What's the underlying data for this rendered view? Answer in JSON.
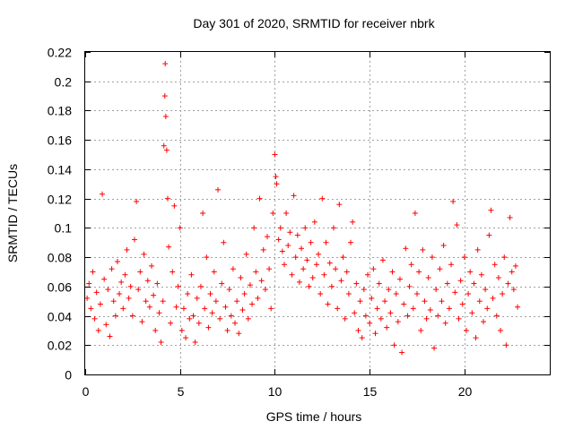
{
  "chart_data": {
    "type": "scatter",
    "title": "Day 301 of 2020, SRMTID for receiver nbrk",
    "xlabel": "GPS time / hours",
    "ylabel": "SRMTID / TECUs",
    "xlim": [
      0,
      24.5
    ],
    "ylim": [
      0,
      0.22
    ],
    "x_ticks": [
      0,
      5,
      10,
      15,
      20
    ],
    "y_ticks": [
      0,
      0.02,
      0.04,
      0.06,
      0.08,
      0.1,
      0.12,
      0.14,
      0.16,
      0.18,
      0.2,
      0.22
    ],
    "x_tick_labels": [
      "0",
      "5",
      "10",
      "15",
      "20"
    ],
    "y_tick_labels": [
      "0",
      "0.02",
      "0.04",
      "0.06",
      "0.08",
      "0.1",
      "0.12",
      "0.14",
      "0.16",
      "0.18",
      "0.2",
      "0.22"
    ],
    "grid": true,
    "marker": "+",
    "color": "#ff0000",
    "series": [
      {
        "name": "SRMTID",
        "points": [
          [
            0.1,
            0.052
          ],
          [
            0.2,
            0.062
          ],
          [
            0.3,
            0.045
          ],
          [
            0.4,
            0.07
          ],
          [
            0.5,
            0.038
          ],
          [
            0.6,
            0.056
          ],
          [
            0.7,
            0.03
          ],
          [
            0.8,
            0.048
          ],
          [
            0.9,
            0.123
          ],
          [
            1.0,
            0.065
          ],
          [
            1.1,
            0.034
          ],
          [
            1.2,
            0.058
          ],
          [
            1.3,
            0.026
          ],
          [
            1.4,
            0.072
          ],
          [
            1.5,
            0.05
          ],
          [
            1.6,
            0.04
          ],
          [
            1.7,
            0.077
          ],
          [
            1.8,
            0.055
          ],
          [
            1.9,
            0.063
          ],
          [
            2.0,
            0.045
          ],
          [
            2.1,
            0.068
          ],
          [
            2.2,
            0.085
          ],
          [
            2.3,
            0.052
          ],
          [
            2.4,
            0.06
          ],
          [
            2.5,
            0.04
          ],
          [
            2.6,
            0.092
          ],
          [
            2.7,
            0.118
          ],
          [
            2.8,
            0.058
          ],
          [
            2.9,
            0.07
          ],
          [
            3.0,
            0.036
          ],
          [
            3.1,
            0.082
          ],
          [
            3.2,
            0.05
          ],
          [
            3.3,
            0.064
          ],
          [
            3.4,
            0.046
          ],
          [
            3.5,
            0.074
          ],
          [
            3.6,
            0.054
          ],
          [
            3.7,
            0.03
          ],
          [
            3.8,
            0.062
          ],
          [
            3.9,
            0.042
          ],
          [
            4.0,
            0.022
          ],
          [
            4.1,
            0.05
          ],
          [
            4.15,
            0.156
          ],
          [
            4.2,
            0.19
          ],
          [
            4.22,
            0.212
          ],
          [
            4.25,
            0.176
          ],
          [
            4.3,
            0.153
          ],
          [
            4.35,
            0.12
          ],
          [
            4.4,
            0.087
          ],
          [
            4.5,
            0.035
          ],
          [
            4.6,
            0.07
          ],
          [
            4.7,
            0.115
          ],
          [
            4.8,
            0.046
          ],
          [
            4.9,
            0.06
          ],
          [
            5.0,
            0.1
          ],
          [
            5.1,
            0.03
          ],
          [
            5.2,
            0.045
          ],
          [
            5.3,
            0.025
          ],
          [
            5.4,
            0.055
          ],
          [
            5.5,
            0.038
          ],
          [
            5.6,
            0.068
          ],
          [
            5.7,
            0.04
          ],
          [
            5.8,
            0.022
          ],
          [
            5.9,
            0.052
          ],
          [
            6.0,
            0.035
          ],
          [
            6.1,
            0.06
          ],
          [
            6.2,
            0.11
          ],
          [
            6.3,
            0.045
          ],
          [
            6.4,
            0.08
          ],
          [
            6.5,
            0.032
          ],
          [
            6.6,
            0.055
          ],
          [
            6.7,
            0.042
          ],
          [
            6.8,
            0.07
          ],
          [
            6.9,
            0.05
          ],
          [
            7.0,
            0.126
          ],
          [
            7.1,
            0.038
          ],
          [
            7.2,
            0.062
          ],
          [
            7.3,
            0.09
          ],
          [
            7.4,
            0.046
          ],
          [
            7.5,
            0.03
          ],
          [
            7.6,
            0.058
          ],
          [
            7.7,
            0.04
          ],
          [
            7.8,
            0.072
          ],
          [
            7.9,
            0.035
          ],
          [
            8.0,
            0.05
          ],
          [
            8.1,
            0.028
          ],
          [
            8.2,
            0.066
          ],
          [
            8.3,
            0.044
          ],
          [
            8.4,
            0.055
          ],
          [
            8.5,
            0.082
          ],
          [
            8.6,
            0.038
          ],
          [
            8.7,
            0.061
          ],
          [
            8.8,
            0.048
          ],
          [
            8.9,
            0.1
          ],
          [
            9.0,
            0.07
          ],
          [
            9.1,
            0.052
          ],
          [
            9.2,
            0.12
          ],
          [
            9.3,
            0.064
          ],
          [
            9.4,
            0.085
          ],
          [
            9.5,
            0.058
          ],
          [
            9.6,
            0.094
          ],
          [
            9.7,
            0.072
          ],
          [
            9.8,
            0.045
          ],
          [
            9.9,
            0.11
          ],
          [
            10.0,
            0.15
          ],
          [
            10.05,
            0.135
          ],
          [
            10.1,
            0.13
          ],
          [
            10.2,
            0.092
          ],
          [
            10.3,
            0.1
          ],
          [
            10.4,
            0.084
          ],
          [
            10.5,
            0.075
          ],
          [
            10.6,
            0.11
          ],
          [
            10.7,
            0.088
          ],
          [
            10.8,
            0.097
          ],
          [
            10.9,
            0.068
          ],
          [
            11.0,
            0.122
          ],
          [
            11.1,
            0.08
          ],
          [
            11.2,
            0.095
          ],
          [
            11.3,
            0.063
          ],
          [
            11.4,
            0.086
          ],
          [
            11.5,
            0.072
          ],
          [
            11.6,
            0.1
          ],
          [
            11.7,
            0.078
          ],
          [
            11.8,
            0.06
          ],
          [
            11.9,
            0.09
          ],
          [
            12.0,
            0.066
          ],
          [
            12.1,
            0.104
          ],
          [
            12.2,
            0.075
          ],
          [
            12.3,
            0.082
          ],
          [
            12.4,
            0.055
          ],
          [
            12.5,
            0.12
          ],
          [
            12.6,
            0.068
          ],
          [
            12.7,
            0.09
          ],
          [
            12.8,
            0.048
          ],
          [
            12.9,
            0.076
          ],
          [
            13.0,
            0.06
          ],
          [
            13.1,
            0.1
          ],
          [
            13.2,
            0.072
          ],
          [
            13.3,
            0.045
          ],
          [
            13.4,
            0.116
          ],
          [
            13.5,
            0.064
          ],
          [
            13.6,
            0.08
          ],
          [
            13.7,
            0.038
          ],
          [
            13.8,
            0.07
          ],
          [
            13.9,
            0.055
          ],
          [
            14.0,
            0.09
          ],
          [
            14.1,
            0.104
          ],
          [
            14.2,
            0.042
          ],
          [
            14.3,
            0.062
          ],
          [
            14.4,
            0.03
          ],
          [
            14.5,
            0.05
          ],
          [
            14.6,
            0.025
          ],
          [
            14.7,
            0.058
          ],
          [
            14.8,
            0.04
          ],
          [
            14.9,
            0.068
          ],
          [
            15.0,
            0.035
          ],
          [
            15.1,
            0.052
          ],
          [
            15.2,
            0.072
          ],
          [
            15.3,
            0.028
          ],
          [
            15.4,
            0.045
          ],
          [
            15.5,
            0.062
          ],
          [
            15.6,
            0.038
          ],
          [
            15.7,
            0.078
          ],
          [
            15.8,
            0.05
          ],
          [
            15.9,
            0.032
          ],
          [
            16.0,
            0.058
          ],
          [
            16.1,
            0.042
          ],
          [
            16.2,
            0.07
          ],
          [
            16.3,
            0.02
          ],
          [
            16.4,
            0.055
          ],
          [
            16.5,
            0.036
          ],
          [
            16.6,
            0.065
          ],
          [
            16.7,
            0.015
          ],
          [
            16.8,
            0.048
          ],
          [
            16.9,
            0.086
          ],
          [
            17.0,
            0.04
          ],
          [
            17.1,
            0.06
          ],
          [
            17.2,
            0.075
          ],
          [
            17.3,
            0.045
          ],
          [
            17.4,
            0.11
          ],
          [
            17.5,
            0.055
          ],
          [
            17.6,
            0.07
          ],
          [
            17.7,
            0.03
          ],
          [
            17.8,
            0.085
          ],
          [
            17.9,
            0.05
          ],
          [
            18.0,
            0.038
          ],
          [
            18.1,
            0.066
          ],
          [
            18.2,
            0.044
          ],
          [
            18.3,
            0.08
          ],
          [
            18.4,
            0.018
          ],
          [
            18.5,
            0.058
          ],
          [
            18.6,
            0.04
          ],
          [
            18.7,
            0.072
          ],
          [
            18.8,
            0.05
          ],
          [
            18.9,
            0.088
          ],
          [
            19.0,
            0.035
          ],
          [
            19.1,
            0.062
          ],
          [
            19.2,
            0.045
          ],
          [
            19.3,
            0.075
          ],
          [
            19.4,
            0.118
          ],
          [
            19.5,
            0.056
          ],
          [
            19.6,
            0.102
          ],
          [
            19.7,
            0.038
          ],
          [
            19.8,
            0.064
          ],
          [
            19.9,
            0.048
          ],
          [
            20.0,
            0.08
          ],
          [
            20.1,
            0.03
          ],
          [
            20.2,
            0.055
          ],
          [
            20.3,
            0.07
          ],
          [
            20.4,
            0.042
          ],
          [
            20.5,
            0.062
          ],
          [
            20.6,
            0.025
          ],
          [
            20.7,
            0.085
          ],
          [
            20.8,
            0.05
          ],
          [
            20.9,
            0.068
          ],
          [
            21.0,
            0.036
          ],
          [
            21.1,
            0.058
          ],
          [
            21.2,
            0.045
          ],
          [
            21.3,
            0.095
          ],
          [
            21.4,
            0.112
          ],
          [
            21.5,
            0.052
          ],
          [
            21.6,
            0.075
          ],
          [
            21.7,
            0.04
          ],
          [
            21.8,
            0.066
          ],
          [
            21.9,
            0.03
          ],
          [
            22.0,
            0.055
          ],
          [
            22.1,
            0.08
          ],
          [
            22.2,
            0.02
          ],
          [
            22.3,
            0.062
          ],
          [
            22.4,
            0.107
          ],
          [
            22.5,
            0.07
          ],
          [
            22.6,
            0.058
          ],
          [
            22.7,
            0.074
          ],
          [
            22.8,
            0.046
          ]
        ]
      }
    ]
  }
}
